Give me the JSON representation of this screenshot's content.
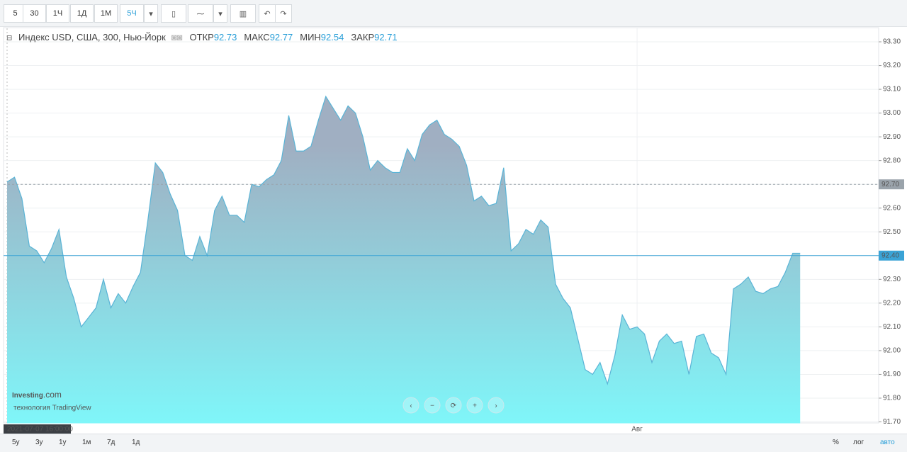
{
  "toolbar": {
    "intervals": [
      "5",
      "30",
      "1Ч",
      "1Д",
      "1М",
      "5Ч"
    ]
  },
  "legend": {
    "symbol": "Индекс USD, США, 300, Нью-Йорк",
    "fields": [
      {
        "label": "ОТКР",
        "value": "92.73"
      },
      {
        "label": "МАКС",
        "value": "92.77"
      },
      {
        "label": "МИН",
        "value": "92.54"
      },
      {
        "label": "ЗАКР",
        "value": "92.71"
      }
    ]
  },
  "watermark": {
    "brand": "Investing",
    "suffix": ".com",
    "tagline": "технология TradingView"
  },
  "bottom_bar": {
    "ranges": [
      "5у",
      "3у",
      "1у",
      "1м",
      "7д",
      "1д"
    ],
    "scale_options": [
      "%",
      "лог",
      "авто"
    ]
  },
  "chart_data": {
    "type": "area",
    "crosshair_label": "2021-07-07 16:00:00",
    "categories": [
      null,
      null,
      null,
      null,
      null,
      null,
      null,
      null,
      null,
      null,
      null,
      null,
      null,
      null,
      null,
      null,
      null,
      null,
      null,
      null,
      null,
      null,
      null,
      null,
      null,
      null,
      null,
      null,
      null,
      null,
      null,
      null,
      null,
      null,
      null,
      null,
      null,
      null,
      null,
      null,
      null,
      null,
      null,
      null,
      null,
      null,
      null,
      null,
      null,
      null,
      null,
      null,
      null,
      null,
      null,
      null,
      null,
      null,
      null,
      null,
      null,
      null,
      null,
      null,
      null,
      null,
      null,
      null,
      null,
      null,
      null,
      null,
      null,
      null,
      null,
      null,
      null,
      null,
      null,
      null,
      null,
      null,
      null,
      null,
      null,
      "Авг",
      null,
      null,
      null,
      null,
      null,
      null,
      null,
      null,
      null,
      null,
      null,
      null,
      null,
      null,
      null,
      null,
      null,
      null,
      null,
      null,
      null,
      null
    ],
    "values": [
      92.71,
      92.73,
      92.64,
      92.44,
      92.42,
      92.37,
      92.43,
      92.51,
      92.31,
      92.22,
      92.1,
      92.14,
      92.18,
      92.3,
      92.18,
      92.24,
      92.2,
      92.27,
      92.33,
      92.55,
      92.79,
      92.75,
      92.66,
      92.59,
      92.4,
      92.38,
      92.48,
      92.4,
      92.59,
      92.65,
      92.57,
      92.57,
      92.54,
      92.7,
      92.69,
      92.72,
      92.74,
      92.8,
      92.99,
      92.84,
      92.84,
      92.86,
      92.97,
      93.07,
      93.02,
      92.97,
      93.03,
      93.0,
      92.9,
      92.76,
      92.8,
      92.77,
      92.75,
      92.75,
      92.85,
      92.8,
      92.91,
      92.95,
      92.97,
      92.91,
      92.89,
      92.86,
      92.78,
      92.63,
      92.65,
      92.61,
      92.62,
      92.77,
      92.42,
      92.45,
      92.51,
      92.49,
      92.55,
      92.52,
      92.28,
      92.22,
      92.18,
      92.05,
      91.92,
      91.9,
      91.95,
      91.86,
      91.98,
      92.15,
      92.09,
      92.1,
      92.07,
      91.95,
      92.04,
      92.07,
      92.03,
      92.04,
      91.9,
      92.06,
      92.07,
      91.99,
      91.97,
      91.9,
      92.26,
      92.28,
      92.31,
      92.25,
      92.24,
      92.26,
      92.27,
      92.33,
      92.41,
      92.41
    ],
    "line_color": "#5ab4d6",
    "fill_top": "#a0afc2",
    "fill_bottom": "#7ff6f9",
    "ylim": [
      91.7,
      93.36
    ],
    "yticks": [
      {
        "value": 91.7,
        "label": "91.70"
      },
      {
        "value": 91.8,
        "label": "91.80"
      },
      {
        "value": 91.9,
        "label": "91.90"
      },
      {
        "value": 92.0,
        "label": "92.00"
      },
      {
        "value": 92.1,
        "label": "92.10"
      },
      {
        "value": 92.2,
        "label": "92.20"
      },
      {
        "value": 92.3,
        "label": "92.30"
      },
      {
        "value": 92.4,
        "label": "92.40"
      },
      {
        "value": 92.5,
        "label": "92.50"
      },
      {
        "value": 92.6,
        "label": "92.60"
      },
      {
        "value": 92.7,
        "label": "92.70"
      },
      {
        "value": 92.8,
        "label": "92.80"
      },
      {
        "value": 92.9,
        "label": "92.90"
      },
      {
        "value": 93.0,
        "label": "93.00"
      },
      {
        "value": 93.1,
        "label": "93.10"
      },
      {
        "value": 93.2,
        "label": "93.20"
      },
      {
        "value": 93.3,
        "label": "93.30"
      }
    ],
    "grid": true,
    "price_lines": [
      {
        "value": 92.7,
        "label": "92.70",
        "style": "dashed",
        "color": "#9aa3ab"
      },
      {
        "value": 92.4,
        "label": "92.40",
        "style": "solid",
        "color": "#3aa3d6"
      }
    ]
  }
}
